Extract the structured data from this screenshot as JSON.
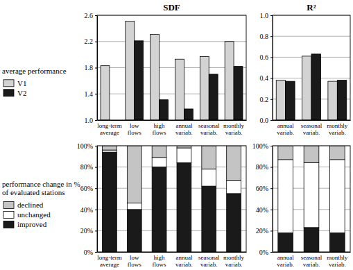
{
  "chart_data": [
    {
      "type": "bar",
      "title": "SDF",
      "y_label": "average performance",
      "categories": [
        "long-term average",
        "low flows",
        "high flows",
        "annual variab.",
        "seasonal variab.",
        "monthly variab."
      ],
      "series": [
        {
          "name": "V1",
          "color": "#d3d3d3",
          "values": [
            1.83,
            2.51,
            2.31,
            1.93,
            1.97,
            2.2
          ]
        },
        {
          "name": "V2",
          "color": "#1a1a1a",
          "values": [
            null,
            2.21,
            1.31,
            1.17,
            1.7,
            1.82
          ]
        }
      ],
      "ylim": [
        1,
        2.6
      ],
      "yticks": [
        {
          "value": 1,
          "label": "1.0"
        },
        1.4,
        1.8,
        2.2,
        2.6
      ],
      "grid": true,
      "legend": "left"
    },
    {
      "type": "bar",
      "title": "R²",
      "categories": [
        "annual variab.",
        "seasonal variab.",
        "monthly variab."
      ],
      "series": [
        {
          "name": "V1",
          "color": "#d3d3d3",
          "values": [
            0.38,
            0.61,
            0.37
          ]
        },
        {
          "name": "V2",
          "color": "#1a1a1a",
          "values": [
            0.37,
            0.63,
            0.38
          ]
        }
      ],
      "ylim": [
        0,
        1
      ],
      "yticks": [
        {
          "value": 0,
          "label": "0.0"
        },
        0.2,
        0.4,
        0.6,
        0.8,
        {
          "value": 1,
          "label": "1.0"
        }
      ],
      "grid": true
    },
    {
      "type": "bar",
      "y_label": "performance change in % of evaluated stations",
      "categories": [
        "long-term average",
        "low flows",
        "high flows",
        "annual variab.",
        "seasonal variab.",
        "monthly variab."
      ],
      "series": [
        {
          "name": "improved",
          "color": "#1a1a1a",
          "values": [
            94,
            40,
            80,
            84,
            62,
            55
          ]
        },
        {
          "name": "unchanged",
          "color": "#ffffff",
          "values": [
            2,
            6,
            9,
            14,
            16,
            12
          ]
        },
        {
          "name": "declined",
          "color": "#c4c4c4",
          "values": [
            4,
            54,
            11,
            2,
            22,
            33
          ]
        }
      ],
      "ylim": [
        0,
        100
      ],
      "yticks": [
        {
          "value": 0,
          "label": "0%"
        },
        {
          "value": 20,
          "label": "20%"
        },
        {
          "value": 40,
          "label": "40%"
        },
        {
          "value": 60,
          "label": "60%"
        },
        {
          "value": 80,
          "label": "80%"
        },
        {
          "value": 100,
          "label": "100%"
        }
      ],
      "stacked": true,
      "grid": true,
      "legend": "left"
    },
    {
      "type": "bar",
      "categories": [
        "annual variab.",
        "seasonal variab.",
        "monthly variab."
      ],
      "series": [
        {
          "name": "improved",
          "color": "#1a1a1a",
          "values": [
            18,
            23,
            18
          ]
        },
        {
          "name": "unchanged",
          "color": "#ffffff",
          "values": [
            69,
            61,
            69
          ]
        },
        {
          "name": "declined",
          "color": "#c4c4c4",
          "values": [
            13,
            16,
            13
          ]
        }
      ],
      "ylim": [
        0,
        100
      ],
      "yticks": [
        {
          "value": 0,
          "label": "0%"
        },
        {
          "value": 20,
          "label": "20%"
        },
        {
          "value": 40,
          "label": "40%"
        },
        {
          "value": 60,
          "label": "60%"
        },
        {
          "value": 80,
          "label": "80%"
        },
        {
          "value": 100,
          "label": "100%"
        }
      ],
      "stacked": true,
      "grid": true
    }
  ]
}
